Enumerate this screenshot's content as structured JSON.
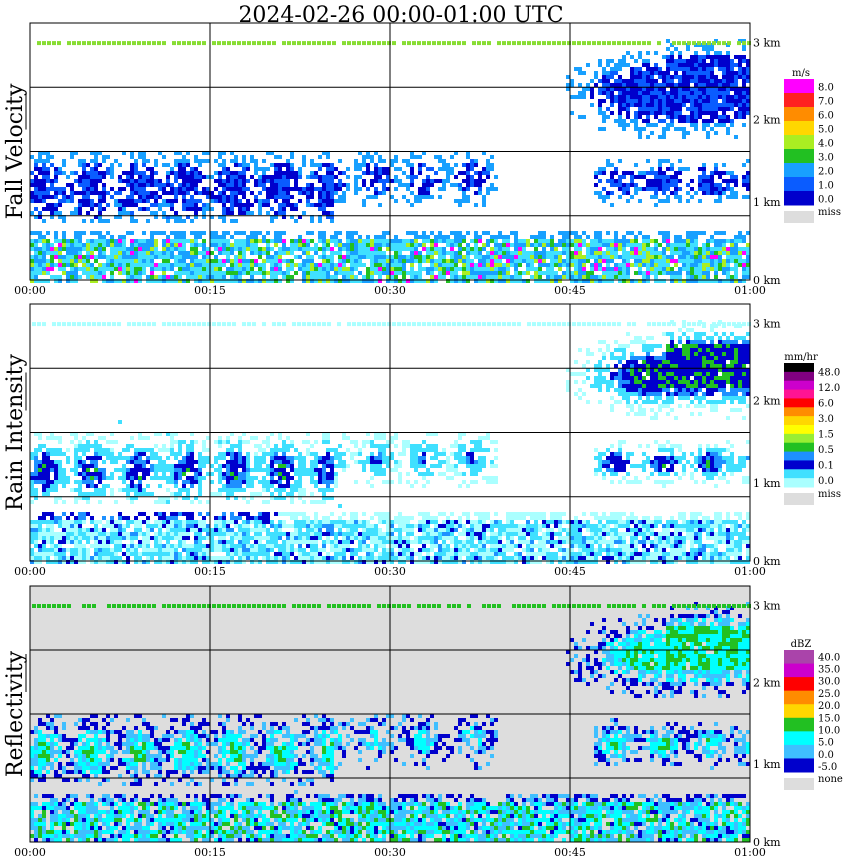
{
  "title": "2024-02-26   00:00-01:00 UTC",
  "x_ticks": [
    "00:00",
    "00:15",
    "00:30",
    "00:45",
    "01:00"
  ],
  "height_ticks": [
    "0 km",
    "1 km",
    "2 km",
    "3 km"
  ],
  "chart_data": [
    {
      "type": "heatmap",
      "ylabel": "Fall Velocity",
      "x_range": [
        "00:00",
        "01:00"
      ],
      "y_range_km": [
        0,
        3.2
      ],
      "grid": true,
      "colorbar": {
        "unit": "m/s",
        "levels": [
          "8.0",
          "7.0",
          "6.0",
          "5.0",
          "4.0",
          "3.0",
          "2.0",
          "1.0",
          "0.0"
        ],
        "colors": [
          "#ff00ff",
          "#ff2020",
          "#ff8c00",
          "#ffd700",
          "#aaee22",
          "#22c022",
          "#18a0ff",
          "#0a5cff",
          "#0000cc"
        ],
        "miss_label": "miss",
        "miss_color": "#dddddd"
      }
    },
    {
      "type": "heatmap",
      "ylabel": "Rain Intensity",
      "x_range": [
        "00:00",
        "01:00"
      ],
      "y_range_km": [
        0,
        3.2
      ],
      "grid": true,
      "colorbar": {
        "unit": "mm/hr",
        "levels": [
          "48.0",
          "12.0",
          "6.0",
          "3.0",
          "1.5",
          "0.5",
          "0.1",
          "0.0"
        ],
        "colors": [
          "#000000",
          "#800080",
          "#cc00cc",
          "#ff1493",
          "#ff0000",
          "#ff8c00",
          "#ffd700",
          "#ffff00",
          "#99ee33",
          "#22c022",
          "#1e90ff",
          "#0000cd",
          "#40e0ff",
          "#aaffff"
        ],
        "miss_label": "miss",
        "miss_color": "#dddddd"
      }
    },
    {
      "type": "heatmap",
      "ylabel": "Reflectivity",
      "x_range": [
        "00:00",
        "01:00"
      ],
      "y_range_km": [
        0,
        3.2
      ],
      "grid": true,
      "colorbar": {
        "unit": "dBZ",
        "levels": [
          "40.0",
          "35.0",
          "30.0",
          "25.0",
          "20.0",
          "15.0",
          "10.0",
          "5.0",
          "0.0",
          "-5.0"
        ],
        "colors": [
          "#aa44aa",
          "#cc00cc",
          "#ff0000",
          "#ff8c00",
          "#ffd700",
          "#22c022",
          "#00ffff",
          "#3fbfff",
          "#0000cc"
        ],
        "miss_label": "none",
        "miss_color": "#dddddd"
      }
    }
  ]
}
